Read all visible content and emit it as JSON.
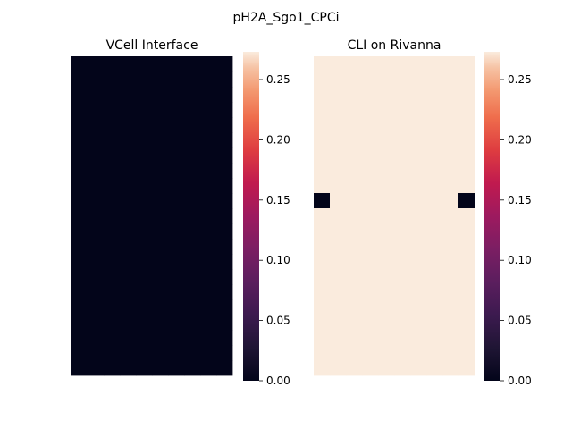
{
  "suptitle": "pH2A_Sgo1_CPCi",
  "chart_data": [
    {
      "type": "heatmap",
      "title": "VCell Interface",
      "rows": 21,
      "cols": 10,
      "fill_value": 0,
      "cells": [],
      "colorbar": {
        "range": [
          0.0,
          0.273
        ],
        "ticks": [
          "0.00",
          "0.05",
          "0.10",
          "0.15",
          "0.20",
          "0.25"
        ],
        "tick_values": [
          0.0,
          0.05,
          0.1,
          0.15,
          0.2,
          0.25
        ],
        "colormap": "rocket"
      }
    },
    {
      "type": "heatmap",
      "title": "CLI on Rivanna",
      "rows": 21,
      "cols": 10,
      "fill_value": 0.273,
      "cells": [
        {
          "row": 9,
          "col": 0,
          "value": 0
        },
        {
          "row": 9,
          "col": 9,
          "value": 0
        }
      ],
      "colorbar": {
        "range": [
          0.0,
          0.273
        ],
        "ticks": [
          "0.00",
          "0.05",
          "0.10",
          "0.15",
          "0.20",
          "0.25"
        ],
        "tick_values": [
          0.0,
          0.05,
          0.1,
          0.15,
          0.2,
          0.25
        ],
        "colormap": "rocket"
      }
    }
  ]
}
